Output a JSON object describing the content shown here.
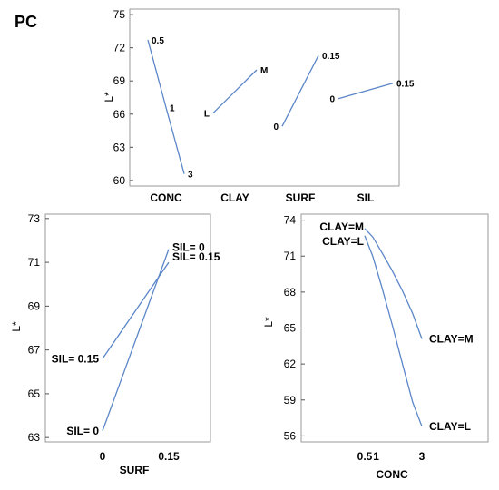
{
  "figure_label": "PC",
  "chart_data": [
    {
      "type": "line",
      "title": "",
      "ylabel": "L*",
      "yticks": [
        60,
        63,
        66,
        69,
        72,
        75
      ],
      "ylim": [
        59.5,
        75.5
      ],
      "factors": [
        {
          "name": "CONC",
          "levels": [
            "0.5",
            "1",
            "3"
          ],
          "values": [
            72.7,
            66.6,
            60.6
          ]
        },
        {
          "name": "CLAY",
          "levels": [
            "L",
            "M"
          ],
          "values": [
            66.1,
            70.0
          ]
        },
        {
          "name": "SURF",
          "levels": [
            "0",
            "0.15"
          ],
          "values": [
            64.9,
            71.3
          ]
        },
        {
          "name": "SIL",
          "levels": [
            "0",
            "0.15"
          ],
          "values": [
            67.4,
            68.8
          ]
        }
      ]
    },
    {
      "type": "line",
      "title": "",
      "xlabel": "SURF",
      "ylabel": "L*",
      "x": [
        "0",
        "0.15"
      ],
      "yticks": [
        63,
        65,
        67,
        69,
        71,
        73
      ],
      "ylim": [
        62.8,
        73.2
      ],
      "series": [
        {
          "name": "SIL= 0",
          "values": [
            63.3,
            71.6
          ]
        },
        {
          "name": "SIL= 0.15",
          "values": [
            66.6,
            71.0
          ]
        }
      ],
      "annotations": [
        {
          "text": "SIL= 0",
          "series": 0,
          "point": 1
        },
        {
          "text": "SIL= 0.15",
          "series": 1,
          "point": 1
        },
        {
          "text": "SIL= 0.15",
          "series": 1,
          "point": 0
        },
        {
          "text": "SIL= 0",
          "series": 0,
          "point": 0
        }
      ]
    },
    {
      "type": "line",
      "title": "",
      "xlabel": "CONC",
      "ylabel": "L*",
      "x": [
        "0.5",
        "1",
        "3"
      ],
      "yticks": [
        56,
        59,
        62,
        65,
        68,
        71,
        74
      ],
      "ylim": [
        55.5,
        74.5
      ],
      "series": [
        {
          "name": "CLAY=M",
          "points": [
            [
              0.5,
              73.3
            ],
            [
              0.85,
              72.6
            ],
            [
              1.25,
              71.3
            ],
            [
              1.7,
              69.8
            ],
            [
              2.15,
              68.1
            ],
            [
              2.6,
              66.2
            ],
            [
              3.0,
              64.1
            ]
          ]
        },
        {
          "name": "CLAY=L",
          "points": [
            [
              0.5,
              72.7
            ],
            [
              0.85,
              71.0
            ],
            [
              1.25,
              68.4
            ],
            [
              1.7,
              65.3
            ],
            [
              2.15,
              62.0
            ],
            [
              2.6,
              58.8
            ],
            [
              3.0,
              56.8
            ]
          ]
        }
      ],
      "annotations": [
        {
          "text": "CLAY=M",
          "series": 0,
          "point": 0
        },
        {
          "text": "CLAY=L",
          "series": 1,
          "point": 0
        },
        {
          "text": "CLAY=M",
          "series": 0,
          "point": 6
        },
        {
          "text": "CLAY=L",
          "series": 1,
          "point": 6
        }
      ]
    }
  ]
}
